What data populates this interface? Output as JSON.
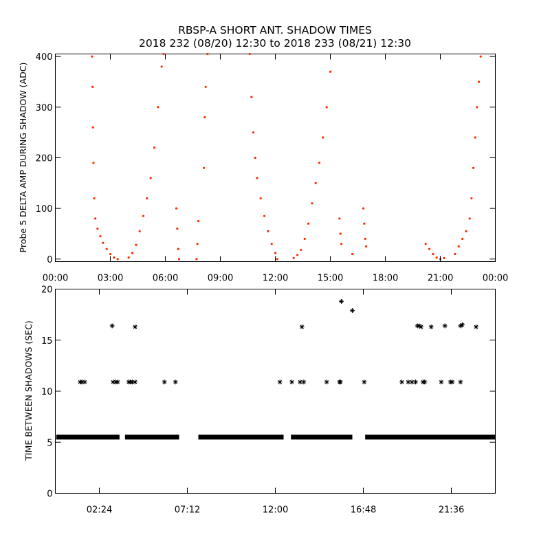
{
  "header": {
    "title": "RBSP-A SHORT ANT. SHADOW TIMES",
    "subtitle": "2018 232 (08/20) 12:30 to 2018 233 (08/21) 12:30"
  },
  "colors": {
    "amp_points": "#ff2a00",
    "interval_points": "#000000",
    "axes": "#000000"
  },
  "chart_data": [
    {
      "type": "scatter",
      "ylabel": "Probe 5 DELTA AMP DURING SHADOW (ADC)",
      "xlabel": "",
      "x_unit": "hours",
      "xlim": [
        0,
        24
      ],
      "ylim": [
        -5,
        405
      ],
      "xticks": [
        0,
        3,
        6,
        9,
        12,
        15,
        18,
        21,
        24
      ],
      "xtick_labels": [
        "00:00",
        "03:00",
        "06:00",
        "09:00",
        "12:00",
        "15:00",
        "18:00",
        "21:00",
        "00:00"
      ],
      "yticks": [
        0,
        100,
        200,
        300,
        400
      ],
      "ytick_labels": [
        "0",
        "100",
        "200",
        "300",
        "400"
      ],
      "marker": "dot",
      "series": [
        {
          "points": [
            [
              2.0,
              400
            ],
            [
              2.03,
              340
            ],
            [
              2.05,
              260
            ],
            [
              2.08,
              190
            ],
            [
              2.12,
              120
            ],
            [
              2.18,
              80
            ],
            [
              2.3,
              60
            ],
            [
              2.45,
              45
            ],
            [
              2.6,
              32
            ],
            [
              2.8,
              20
            ],
            [
              3.0,
              10
            ],
            [
              3.2,
              3
            ],
            [
              3.4,
              0
            ],
            [
              4.0,
              3
            ],
            [
              4.2,
              12
            ],
            [
              4.4,
              28
            ],
            [
              4.6,
              55
            ],
            [
              4.8,
              85
            ],
            [
              5.0,
              120
            ],
            [
              5.2,
              160
            ],
            [
              5.4,
              220
            ],
            [
              5.6,
              300
            ],
            [
              5.8,
              380
            ],
            [
              5.9,
              405
            ],
            [
              6.6,
              100
            ],
            [
              6.65,
              60
            ],
            [
              6.7,
              20
            ],
            [
              6.75,
              0
            ],
            [
              7.7,
              0
            ],
            [
              7.75,
              30
            ],
            [
              7.8,
              75
            ],
            [
              8.1,
              180
            ],
            [
              8.15,
              280
            ],
            [
              8.2,
              340
            ],
            [
              8.3,
              405
            ],
            [
              10.6,
              405
            ],
            [
              10.7,
              320
            ],
            [
              10.8,
              250
            ],
            [
              10.9,
              200
            ],
            [
              11.0,
              160
            ],
            [
              11.2,
              120
            ],
            [
              11.4,
              85
            ],
            [
              11.6,
              55
            ],
            [
              11.8,
              30
            ],
            [
              12.0,
              12
            ],
            [
              12.1,
              0
            ],
            [
              13.0,
              2
            ],
            [
              13.2,
              8
            ],
            [
              13.4,
              18
            ],
            [
              13.6,
              40
            ],
            [
              13.8,
              70
            ],
            [
              14.0,
              110
            ],
            [
              14.2,
              150
            ],
            [
              14.4,
              190
            ],
            [
              14.6,
              240
            ],
            [
              14.8,
              300
            ],
            [
              15.0,
              370
            ],
            [
              15.5,
              80
            ],
            [
              15.55,
              50
            ],
            [
              15.6,
              30
            ],
            [
              16.2,
              10
            ],
            [
              16.8,
              100
            ],
            [
              16.85,
              70
            ],
            [
              16.9,
              40
            ],
            [
              16.95,
              25
            ],
            [
              20.2,
              30
            ],
            [
              20.4,
              20
            ],
            [
              20.6,
              10
            ],
            [
              20.8,
              3
            ],
            [
              21.0,
              0
            ],
            [
              21.2,
              2
            ],
            [
              21.8,
              10
            ],
            [
              22.0,
              25
            ],
            [
              22.2,
              40
            ],
            [
              22.4,
              55
            ],
            [
              22.6,
              80
            ],
            [
              22.7,
              120
            ],
            [
              22.8,
              180
            ],
            [
              22.9,
              240
            ],
            [
              23.0,
              300
            ],
            [
              23.1,
              350
            ],
            [
              23.2,
              400
            ]
          ]
        }
      ]
    },
    {
      "type": "scatter",
      "ylabel": "TIME BETWEEN SHADOWS (SEC)",
      "xlabel": "",
      "x_unit": "hours",
      "xlim": [
        0,
        24
      ],
      "ylim": [
        0,
        20
      ],
      "xticks": [
        2.4,
        7.2,
        12.0,
        16.8,
        21.6
      ],
      "xtick_labels": [
        "02:24",
        "07:12",
        "12:00",
        "16:48",
        "21:36"
      ],
      "yticks": [
        0,
        5,
        10,
        15,
        20
      ],
      "ytick_labels": [
        "0",
        "5",
        "10",
        "15",
        "20"
      ],
      "marker": "asterisk",
      "baseline": {
        "value": 5.5,
        "segments": [
          [
            0.05,
            3.5
          ],
          [
            3.8,
            6.75
          ],
          [
            7.8,
            12.45
          ],
          [
            12.85,
            16.2
          ],
          [
            16.9,
            24.0
          ]
        ]
      },
      "series": [
        {
          "points": [
            [
              1.35,
              10.9
            ],
            [
              1.45,
              10.9
            ],
            [
              1.6,
              10.9
            ],
            [
              3.1,
              16.4
            ],
            [
              3.15,
              10.9
            ],
            [
              3.3,
              10.9
            ],
            [
              3.4,
              10.9
            ],
            [
              4.0,
              10.9
            ],
            [
              4.1,
              10.9
            ],
            [
              4.2,
              10.9
            ],
            [
              4.35,
              10.9
            ],
            [
              4.35,
              16.3
            ],
            [
              5.95,
              10.9
            ],
            [
              6.55,
              10.9
            ],
            [
              12.25,
              10.9
            ],
            [
              12.9,
              10.9
            ],
            [
              13.35,
              10.9
            ],
            [
              13.45,
              16.3
            ],
            [
              13.55,
              10.9
            ],
            [
              14.8,
              10.9
            ],
            [
              15.5,
              10.9
            ],
            [
              15.55,
              10.9
            ],
            [
              15.6,
              18.8
            ],
            [
              16.2,
              17.9
            ],
            [
              16.85,
              10.9
            ],
            [
              18.9,
              10.9
            ],
            [
              19.25,
              10.9
            ],
            [
              19.45,
              10.9
            ],
            [
              19.65,
              10.9
            ],
            [
              19.75,
              16.4
            ],
            [
              19.85,
              16.4
            ],
            [
              19.95,
              16.3
            ],
            [
              20.05,
              10.9
            ],
            [
              20.15,
              10.9
            ],
            [
              20.5,
              16.3
            ],
            [
              21.05,
              10.9
            ],
            [
              21.25,
              16.4
            ],
            [
              21.55,
              10.9
            ],
            [
              21.65,
              10.9
            ],
            [
              22.1,
              16.4
            ],
            [
              22.2,
              16.5
            ],
            [
              22.1,
              10.9
            ],
            [
              22.95,
              16.3
            ]
          ]
        }
      ]
    }
  ]
}
